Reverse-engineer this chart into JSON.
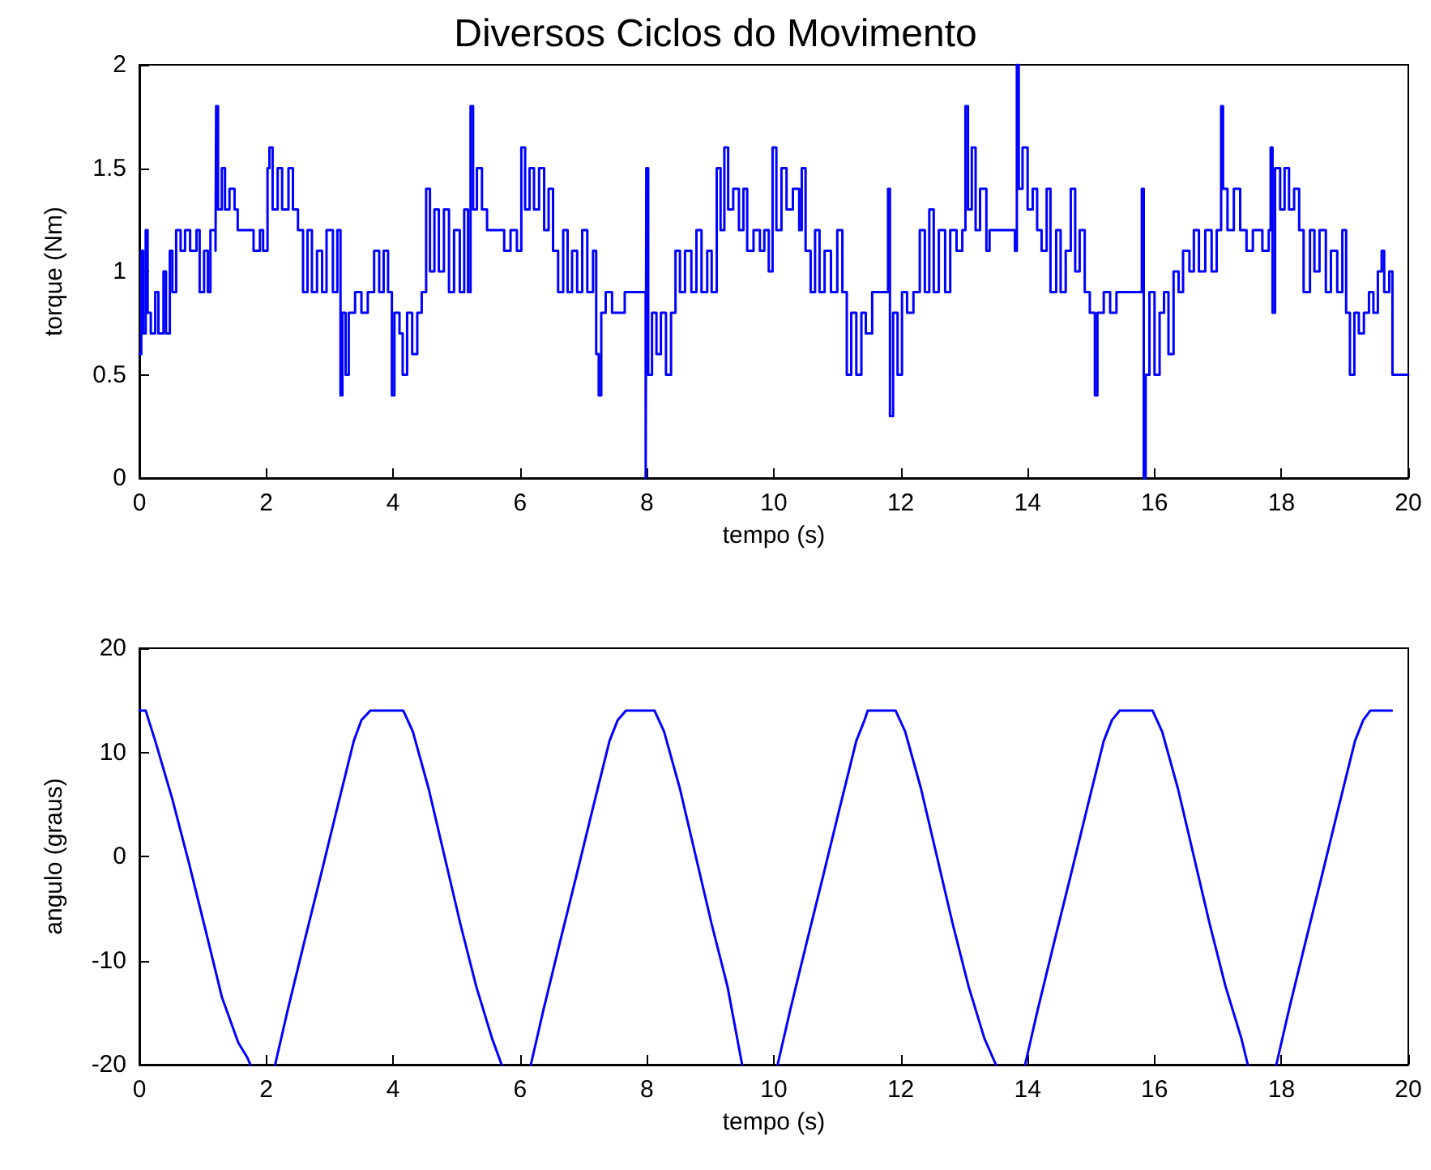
{
  "chart_data": [
    {
      "type": "step",
      "title": "Diversos Ciclos do Movimento",
      "xlabel": "tempo (s)",
      "ylabel": "torque (Nm)",
      "xlim": [
        0,
        20
      ],
      "xticks": [
        0,
        2,
        4,
        6,
        8,
        10,
        12,
        14,
        16,
        18,
        20
      ],
      "ylim": [
        0,
        2
      ],
      "yticks": [
        0,
        0.5,
        1,
        1.5,
        2
      ],
      "grid": false,
      "marker": "none",
      "line_style": "solid",
      "series": [
        {
          "color": "#0000ff",
          "x": [
            0,
            0.03,
            0.06,
            0.1,
            0.13,
            0.18,
            0.25,
            0.3,
            0.38,
            0.42,
            0.48,
            0.52,
            0.58,
            0.65,
            0.72,
            0.8,
            0.9,
            0.95,
            1.02,
            1.08,
            1.12,
            1.2,
            1.21,
            1.24,
            1.3,
            1.35,
            1.42,
            1.5,
            1.55,
            1.8,
            1.9,
            1.95,
            2.02,
            2.05,
            2.1,
            2.18,
            2.25,
            2.35,
            2.42,
            2.5,
            2.58,
            2.65,
            2.72,
            2.8,
            2.88,
            2.95,
            3.05,
            3.12,
            3.17,
            3.2,
            3.25,
            3.3,
            3.4,
            3.5,
            3.6,
            3.7,
            3.78,
            3.85,
            3.92,
            3.98,
            4.02,
            4.1,
            4.15,
            4.22,
            4.3,
            4.38,
            4.45,
            4.52,
            4.58,
            4.65,
            4.72,
            4.8,
            4.88,
            4.96,
            5.05,
            5.12,
            5.18,
            5.22,
            5.26,
            5.32,
            5.4,
            5.48,
            5.75,
            5.85,
            5.95,
            6.02,
            6.08,
            6.15,
            6.22,
            6.3,
            6.38,
            6.45,
            6.52,
            6.6,
            6.68,
            6.75,
            6.82,
            6.9,
            6.98,
            7.06,
            7.15,
            7.2,
            7.24,
            7.28,
            7.35,
            7.45,
            7.55,
            7.65,
            7.98,
            7.99,
            8.02,
            8.08,
            8.15,
            8.22,
            8.3,
            8.38,
            8.45,
            8.52,
            8.6,
            8.7,
            8.78,
            8.86,
            8.95,
            9.02,
            9.1,
            9.16,
            9.22,
            9.28,
            9.36,
            9.45,
            9.52,
            9.58,
            9.68,
            9.78,
            9.85,
            9.92,
            9.98,
            10.04,
            10.12,
            10.2,
            10.3,
            10.4,
            10.44,
            10.5,
            10.58,
            10.65,
            10.72,
            10.8,
            10.9,
            11.0,
            11.08,
            11.15,
            11.22,
            11.3,
            11.38,
            11.45,
            11.55,
            11.7,
            11.8,
            11.83,
            11.88,
            11.95,
            12.02,
            12.1,
            12.2,
            12.3,
            12.38,
            12.45,
            12.52,
            12.6,
            12.7,
            12.78,
            12.88,
            12.97,
            13.02,
            13.06,
            13.12,
            13.18,
            13.25,
            13.35,
            13.4,
            13.8,
            13.83,
            13.86,
            13.92,
            14.0,
            14.08,
            14.15,
            14.22,
            14.3,
            14.36,
            14.45,
            14.52,
            14.6,
            14.68,
            14.75,
            14.82,
            14.9,
            14.98,
            15.06,
            15.1,
            15.2,
            15.3,
            15.4,
            15.8,
            15.83,
            15.86,
            15.92,
            16.0,
            16.08,
            16.15,
            16.22,
            16.3,
            16.38,
            16.45,
            16.55,
            16.62,
            16.7,
            16.8,
            16.9,
            16.98,
            17.05,
            17.08,
            17.15,
            17.25,
            17.35,
            17.45,
            17.55,
            17.7,
            17.8,
            17.83,
            17.86,
            17.9,
            17.98,
            18.05,
            18.12,
            18.2,
            18.28,
            18.35,
            18.45,
            18.52,
            18.6,
            18.7,
            18.78,
            18.88,
            18.96,
            19.02,
            19.08,
            19.15,
            19.22,
            19.3,
            19.38,
            19.45,
            19.52,
            19.58,
            19.62,
            19.7,
            19.75,
            20
          ],
          "values": [
            0.6,
            1.1,
            0.7,
            1.2,
            0.8,
            0.7,
            0.9,
            0.7,
            1.0,
            0.7,
            1.1,
            0.9,
            1.2,
            1.1,
            1.2,
            1.1,
            1.2,
            0.9,
            1.1,
            0.9,
            1.2,
            1.1,
            1.8,
            1.3,
            1.5,
            1.3,
            1.4,
            1.3,
            1.2,
            1.1,
            1.2,
            1.1,
            1.5,
            1.6,
            1.3,
            1.5,
            1.3,
            1.5,
            1.3,
            1.2,
            0.9,
            1.2,
            0.9,
            1.1,
            0.9,
            1.2,
            0.9,
            1.2,
            0.4,
            0.8,
            0.5,
            0.8,
            0.9,
            0.8,
            0.9,
            1.1,
            0.9,
            1.1,
            0.9,
            0.4,
            0.8,
            0.7,
            0.5,
            0.8,
            0.6,
            0.8,
            0.9,
            1.4,
            1.0,
            1.3,
            1.0,
            1.3,
            0.9,
            1.2,
            0.9,
            1.3,
            0.9,
            1.8,
            1.3,
            1.5,
            1.3,
            1.2,
            1.1,
            1.2,
            1.1,
            1.6,
            1.3,
            1.5,
            1.3,
            1.5,
            1.2,
            1.4,
            1.1,
            0.9,
            1.2,
            0.9,
            1.1,
            0.9,
            1.2,
            0.9,
            1.1,
            0.6,
            0.4,
            0.8,
            0.9,
            0.8,
            0.8,
            0.9,
            0.0,
            1.5,
            0.5,
            0.8,
            0.6,
            0.8,
            0.5,
            0.8,
            1.1,
            0.9,
            1.1,
            0.9,
            1.2,
            0.9,
            1.1,
            0.9,
            1.5,
            1.2,
            1.6,
            1.3,
            1.4,
            1.2,
            1.4,
            1.1,
            1.2,
            1.1,
            1.2,
            1.0,
            1.6,
            1.2,
            1.5,
            1.3,
            1.4,
            1.2,
            1.5,
            1.1,
            0.9,
            1.2,
            0.9,
            1.1,
            0.9,
            1.2,
            0.9,
            0.5,
            0.8,
            0.5,
            0.8,
            0.7,
            0.9,
            0.9,
            1.4,
            0.3,
            0.8,
            0.5,
            0.9,
            0.8,
            0.9,
            1.2,
            0.9,
            1.3,
            0.9,
            1.2,
            0.9,
            1.2,
            1.1,
            1.2,
            1.8,
            1.3,
            1.6,
            1.2,
            1.4,
            1.1,
            1.2,
            1.1,
            2.0,
            1.4,
            1.6,
            1.3,
            1.4,
            1.2,
            1.1,
            1.4,
            0.9,
            1.2,
            0.9,
            1.1,
            1.4,
            1.0,
            1.2,
            0.9,
            0.8,
            0.4,
            0.8,
            0.9,
            0.8,
            0.9,
            1.4,
            0.0,
            0.5,
            0.9,
            0.5,
            0.8,
            0.9,
            0.6,
            1.0,
            0.9,
            1.1,
            1.0,
            1.2,
            1.0,
            1.2,
            1.0,
            1.2,
            1.8,
            1.4,
            1.2,
            1.4,
            1.2,
            1.1,
            1.2,
            1.1,
            1.2,
            1.6,
            0.8,
            1.5,
            1.3,
            1.5,
            1.3,
            1.4,
            1.2,
            0.9,
            1.2,
            1.0,
            1.2,
            0.9,
            1.1,
            0.9,
            1.2,
            0.8,
            0.5,
            0.8,
            0.7,
            0.8,
            0.9,
            0.8,
            1.0,
            1.1,
            0.9,
            1.0,
            0.5,
            0.5
          ]
        }
      ]
    },
    {
      "type": "line",
      "xlabel": "tempo (s)",
      "ylabel": "angulo (graus)",
      "xlim": [
        0,
        20
      ],
      "xticks": [
        0,
        2,
        4,
        6,
        8,
        10,
        12,
        14,
        16,
        18,
        20
      ],
      "ylim": [
        -20,
        20
      ],
      "yticks": [
        -20,
        -10,
        0,
        10,
        20
      ],
      "grid": false,
      "marker": "none",
      "line_style": "solid",
      "series": [
        {
          "color": "#0000ff",
          "x": [
            0,
            0.1,
            0.25,
            0.52,
            0.78,
            1.04,
            1.3,
            1.56,
            1.7,
            1.75,
            1.95,
            2.14,
            2.34,
            2.6,
            2.86,
            3.12,
            3.38,
            3.5,
            3.64,
            4.16,
            4.31,
            4.56,
            4.81,
            5.06,
            5.31,
            5.56,
            5.71,
            5.9,
            6.17,
            6.37,
            6.63,
            6.89,
            7.15,
            7.41,
            7.54,
            7.67,
            8.12,
            8.27,
            8.52,
            8.77,
            9.02,
            9.27,
            9.5,
            9.75,
            10.06,
            10.26,
            10.52,
            10.78,
            11.04,
            11.3,
            11.43,
            11.48,
            11.92,
            12.07,
            12.32,
            12.57,
            12.82,
            13.07,
            13.32,
            13.5,
            13.7,
            13.96,
            14.16,
            14.42,
            14.68,
            14.94,
            15.2,
            15.33,
            15.45,
            15.97,
            16.12,
            16.37,
            16.62,
            16.87,
            17.12,
            17.37,
            17.47,
            17.7,
            17.92,
            18.12,
            18.38,
            18.64,
            18.9,
            19.16,
            19.29,
            19.4,
            19.74
          ],
          "values": [
            14,
            14,
            11.1,
            5.5,
            -0.6,
            -7,
            -13.5,
            -17.9,
            -19.3,
            -20,
            null,
            -20,
            -14.7,
            -8.2,
            -1.8,
            4.7,
            11.1,
            13.1,
            14,
            14,
            12,
            6.5,
            0,
            -6.5,
            -12.5,
            -17.5,
            -20,
            null,
            -20,
            -14.7,
            -8.2,
            -1.8,
            4.7,
            11.1,
            13.1,
            14,
            14,
            12,
            6.5,
            0,
            -6.5,
            -12.5,
            -20,
            null,
            -20,
            -14.7,
            -8.2,
            -1.8,
            4.7,
            11.1,
            13.1,
            14,
            14,
            12,
            6.5,
            0,
            -6.5,
            -12.5,
            -17.5,
            -20,
            null,
            -20,
            -14.7,
            -8.2,
            -1.8,
            4.7,
            11.1,
            13.1,
            14,
            14,
            12,
            6.5,
            0,
            -6.5,
            -12.5,
            -17.5,
            -20,
            null,
            -20,
            -14.7,
            -8.2,
            -1.8,
            4.7,
            11.1,
            13.1,
            14,
            14
          ]
        }
      ]
    }
  ]
}
